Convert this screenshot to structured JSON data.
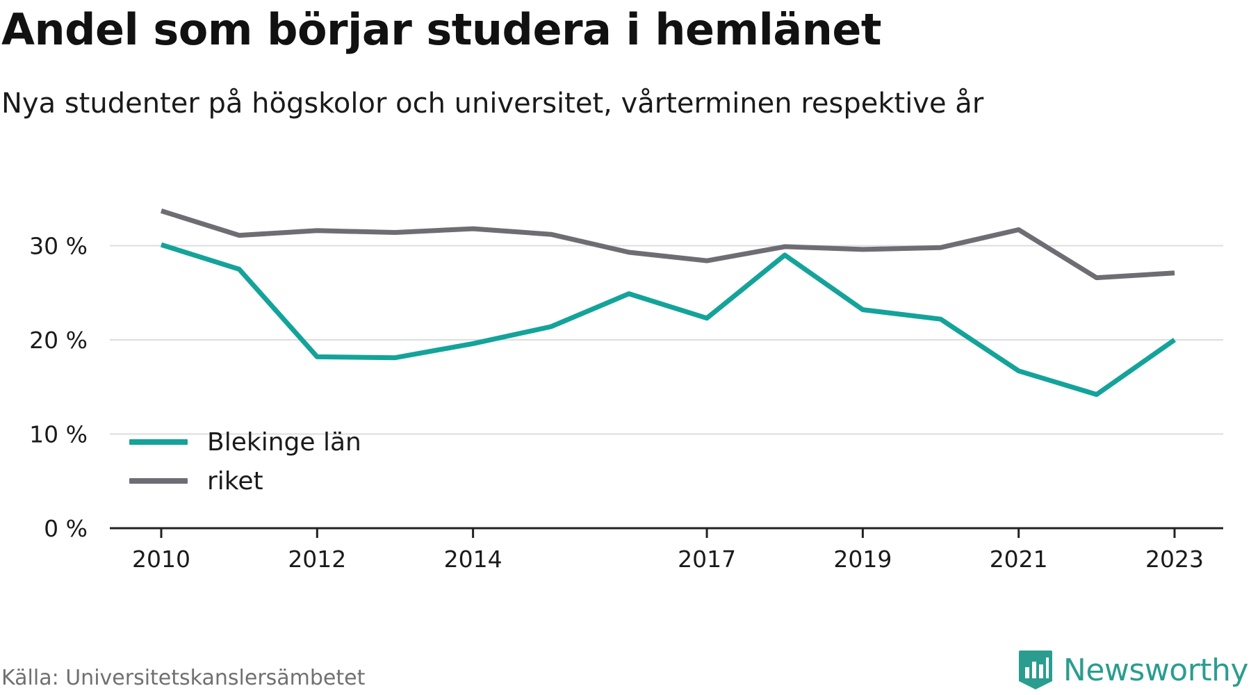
{
  "title": "Andel som börjar studera i hemlänet",
  "subtitle": "Nya studenter på högskolor och universitet, vårterminen respektive år",
  "source": "Källa: Universitetskanslersämbetet",
  "brand": "Newsworthy",
  "colors": {
    "teal": "#14a39a",
    "gray": "#6e6d73",
    "grid": "#dddddd",
    "axis": "#222222",
    "brand": "#2a9d8f"
  },
  "chart_data": {
    "type": "line",
    "x": [
      2010,
      2011,
      2012,
      2013,
      2014,
      2015,
      2016,
      2017,
      2018,
      2019,
      2020,
      2021,
      2022,
      2023
    ],
    "x_tick_labels": [
      "2010",
      "2012",
      "2014",
      "2017",
      "2019",
      "2021",
      "2023"
    ],
    "y_tick_labels": [
      "0 %",
      "10 %",
      "20 %",
      "30 %"
    ],
    "ylim": [
      0,
      36
    ],
    "grid": true,
    "legend_position": "bottom-left",
    "series": [
      {
        "name": "Blekinge län",
        "color": "#14a39a",
        "values": [
          30.1,
          27.5,
          18.2,
          18.1,
          19.6,
          21.4,
          24.9,
          22.3,
          29.0,
          23.2,
          22.2,
          16.7,
          14.2,
          20.0
        ]
      },
      {
        "name": "riket",
        "color": "#6e6d73",
        "values": [
          33.7,
          31.1,
          31.6,
          31.4,
          31.8,
          31.2,
          29.3,
          28.4,
          29.9,
          29.6,
          29.8,
          31.7,
          26.6,
          27.1
        ]
      }
    ]
  }
}
